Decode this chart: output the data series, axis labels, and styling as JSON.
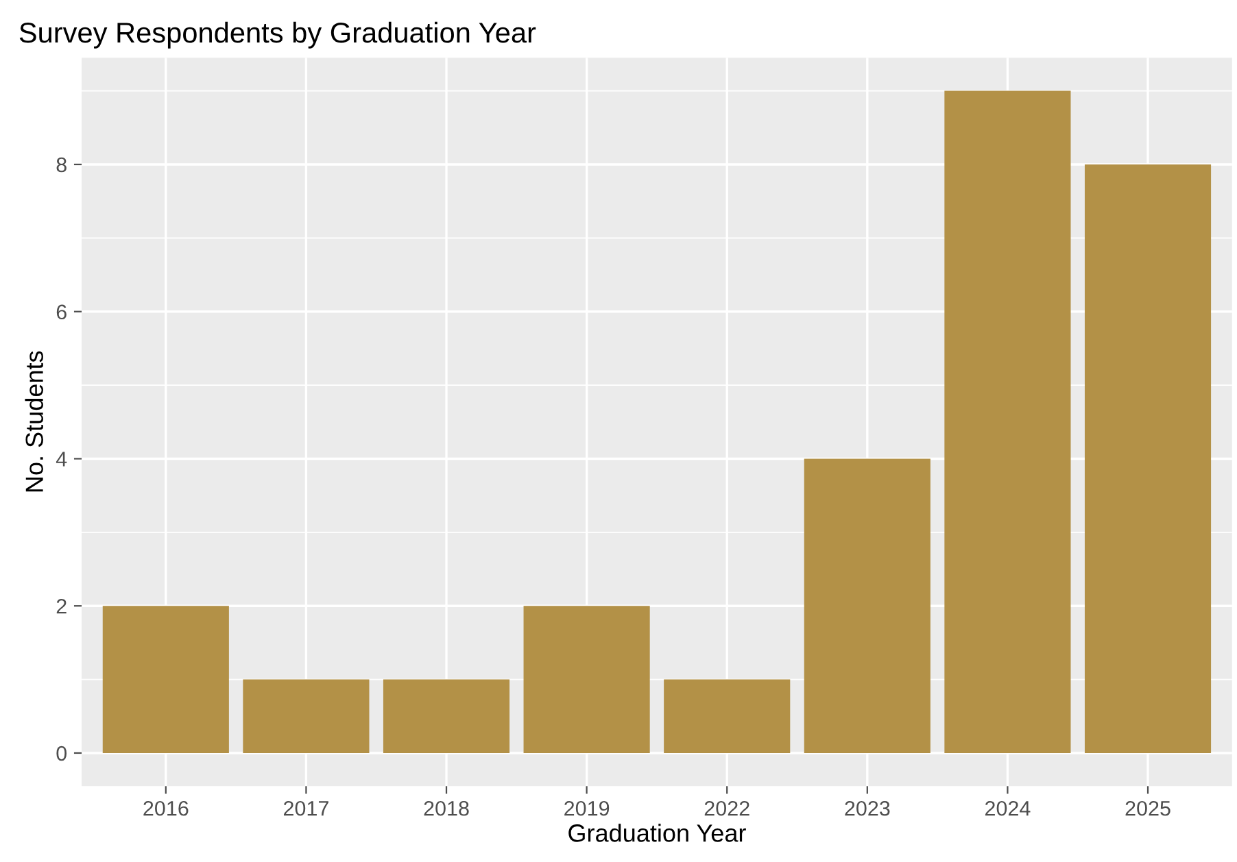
{
  "chart_data": {
    "type": "bar",
    "title": "Survey Respondents by Graduation Year",
    "xlabel": "Graduation Year",
    "ylabel": "No. Students",
    "categories": [
      "2016",
      "2017",
      "2018",
      "2019",
      "2022",
      "2023",
      "2024",
      "2025"
    ],
    "values": [
      2,
      1,
      1,
      2,
      1,
      4,
      9,
      8
    ],
    "color": "#b39147",
    "ylim": [
      -0.45,
      9.45
    ],
    "yticks": [
      0,
      2,
      4,
      6,
      8
    ],
    "grid": true
  }
}
